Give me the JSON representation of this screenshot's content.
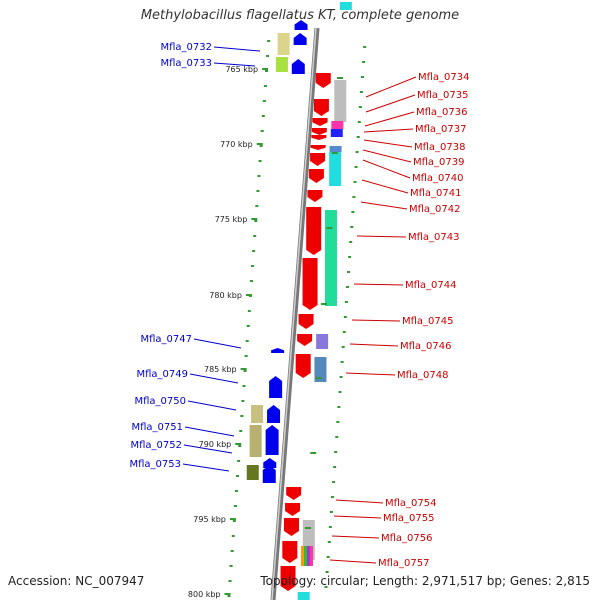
{
  "title": "Methylobacillus flagellatus KT, complete genome",
  "footer": {
    "accession": "Accession: NC_007947",
    "topology": "Topology: circular; Length: 2,971,517 bp; Genes: 2,815"
  },
  "colors": {
    "forward_cds": "#0000ee",
    "reverse_cds": "#ee0000",
    "forward_label": "#0000cc",
    "reverse_label": "#cc0000",
    "tick": "#339933",
    "backbone": "#888888"
  },
  "ticks": [
    {
      "label": "765 kbp"
    },
    {
      "label": "770 kbp"
    },
    {
      "label": "775 kbp"
    },
    {
      "label": "780 kbp"
    },
    {
      "label": "785 kbp"
    },
    {
      "label": "790 kbp"
    },
    {
      "label": "795 kbp"
    },
    {
      "label": "800 kbp"
    }
  ],
  "forward_genes": [
    "Mfla_0732",
    "Mfla_0733",
    "Mfla_0747",
    "Mfla_0749",
    "Mfla_0750",
    "Mfla_0751",
    "Mfla_0752",
    "Mfla_0753"
  ],
  "reverse_genes": [
    "Mfla_0734",
    "Mfla_0735",
    "Mfla_0736",
    "Mfla_0737",
    "Mfla_0738",
    "Mfla_0739",
    "Mfla_0740",
    "Mfla_0741",
    "Mfla_0742",
    "Mfla_0743",
    "Mfla_0744",
    "Mfla_0745",
    "Mfla_0746",
    "Mfla_0748",
    "Mfla_0754",
    "Mfla_0755",
    "Mfla_0756",
    "Mfla_0757"
  ]
}
